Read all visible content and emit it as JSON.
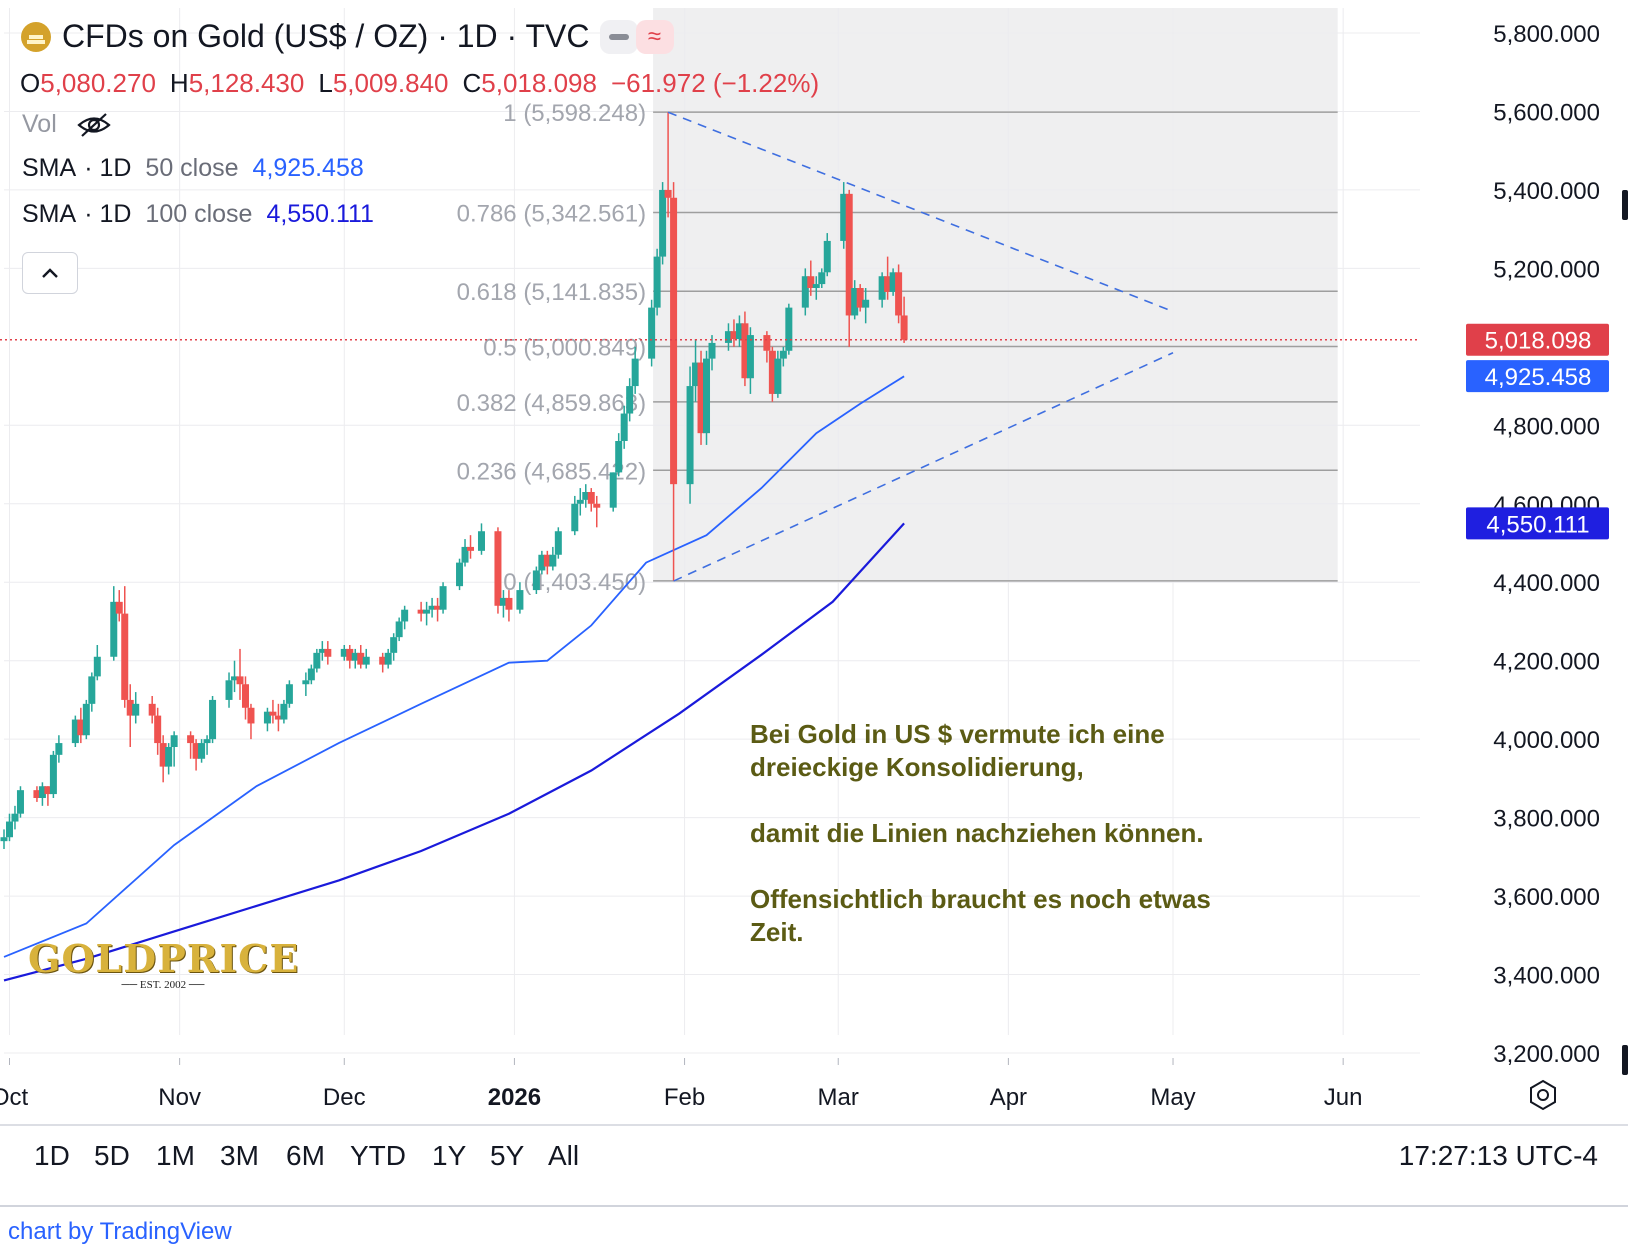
{
  "header": {
    "symbol_title": "CFDs on Gold (US$ / OZ) · 1D · TVC",
    "pill_minus_icon": "minus-icon",
    "pill_wave_icon": "approx-icon",
    "ohlc": {
      "o_label": "O",
      "o_value": "5,080.270",
      "h_label": "H",
      "h_value": "5,128.430",
      "l_label": "L",
      "l_value": "5,009.840",
      "c_label": "C",
      "c_value": "5,018.098",
      "change": "−61.972 (−1.22%)"
    },
    "vol_label": "Vol",
    "sma50": {
      "name": "SMA",
      "params": "· 1D",
      "period": "50 close",
      "value": "4,925.458"
    },
    "sma100": {
      "name": "SMA",
      "params": "· 1D",
      "period": "100 close",
      "value": "4,550.111"
    },
    "collapse_icon": "chevron-up-icon"
  },
  "range_buttons": [
    "1D",
    "5D",
    "1M",
    "3M",
    "6M",
    "YTD",
    "1Y",
    "5Y",
    "All"
  ],
  "clock": "17:27:13 UTC-4",
  "credit": "chart by TradingView",
  "annotation": [
    "Bei Gold in US $ vermute ich eine dreieckige Konsolidierung,",
    "damit die Linien nachziehen können.",
    "Offensichtlich braucht es noch etwas Zeit."
  ],
  "logo": {
    "text": "GOLDPRICE",
    "est": "EST. 2002"
  },
  "colors": {
    "up": "#26a69a",
    "down": "#ef5350",
    "sma50": "#2962ff",
    "sma100": "#1a1adb",
    "price_tag": "#e0404a",
    "sma50_tag": "#2962ff",
    "sma100_tag": "#1f1fe0",
    "fib_zone": "#efeff0",
    "annotation": "#5b5b14"
  },
  "chart_data": {
    "type": "candlestick",
    "title": "CFDs on Gold (US$ / OZ) · 1D · TVC",
    "y_axis_ticks": [
      "5,800.000",
      "5,600.000",
      "5,400.000",
      "5,200.000",
      "4,800.000",
      "4,600.000",
      "4,400.000",
      "4,200.000",
      "4,000.000",
      "3,800.000",
      "3,600.000",
      "3,400.000",
      "3,200.000"
    ],
    "ylim": [
      3150,
      5850
    ],
    "x_axis_ticks": [
      "Oct",
      "Nov",
      "Dec",
      "2026",
      "Feb",
      "Mar",
      "Apr",
      "May",
      "Jun"
    ],
    "x_range": [
      "2025-09-30",
      "2026-06-15"
    ],
    "last_price": 5018.098,
    "last_price_label": "5,018.098",
    "sma50_label": "4,925.458",
    "sma100_label": "4,550.111",
    "fibonacci": {
      "from_date": "2026-01-29",
      "to_date": "2026-05-31",
      "levels": [
        {
          "ratio": 1,
          "price": 5598.248,
          "label": "1 (5,598.248)"
        },
        {
          "ratio": 0.786,
          "price": 5342.561,
          "label": "0.786 (5,342.561)"
        },
        {
          "ratio": 0.618,
          "price": 5141.835,
          "label": "0.618 (5,141.835)"
        },
        {
          "ratio": 0.5,
          "price": 5000.849,
          "label": "0.5 (5,000.849)"
        },
        {
          "ratio": 0.382,
          "price": 4859.863,
          "label": "0.382 (4,859.863)"
        },
        {
          "ratio": 0.236,
          "price": 4685.422,
          "label": "0.236 (4,685.422)"
        },
        {
          "ratio": 0,
          "price": 4403.45,
          "label": "0 (4,403.450)"
        }
      ]
    },
    "trendlines": [
      {
        "from": [
          "2026-01-29",
          5598
        ],
        "to": [
          "2026-05-01",
          5090
        ],
        "style": "dashed"
      },
      {
        "from": [
          "2026-01-30",
          4403
        ],
        "to": [
          "2026-05-01",
          4985
        ],
        "style": "dashed"
      }
    ],
    "sma50": [
      [
        "2025-09-30",
        3445
      ],
      [
        "2025-10-15",
        3530
      ],
      [
        "2025-10-31",
        3730
      ],
      [
        "2025-11-15",
        3880
      ],
      [
        "2025-11-30",
        3990
      ],
      [
        "2025-12-15",
        4090
      ],
      [
        "2025-12-31",
        4195
      ],
      [
        "2026-01-07",
        4200
      ],
      [
        "2026-01-15",
        4290
      ],
      [
        "2026-01-25",
        4450
      ],
      [
        "2026-02-05",
        4520
      ],
      [
        "2026-02-15",
        4640
      ],
      [
        "2026-02-25",
        4780
      ],
      [
        "2026-03-05",
        4855
      ],
      [
        "2026-03-13",
        4925
      ]
    ],
    "sma100": [
      [
        "2025-09-30",
        3385
      ],
      [
        "2025-10-15",
        3440
      ],
      [
        "2025-10-31",
        3510
      ],
      [
        "2025-11-15",
        3575
      ],
      [
        "2025-11-30",
        3640
      ],
      [
        "2025-12-15",
        3715
      ],
      [
        "2025-12-31",
        3810
      ],
      [
        "2026-01-15",
        3920
      ],
      [
        "2026-01-31",
        4065
      ],
      [
        "2026-02-15",
        4215
      ],
      [
        "2026-02-28",
        4350
      ],
      [
        "2026-03-13",
        4550
      ]
    ],
    "ohlc": [
      [
        "2025-09-30",
        3740,
        3770,
        3720,
        3750
      ],
      [
        "2025-10-01",
        3750,
        3810,
        3740,
        3790
      ],
      [
        "2025-10-02",
        3790,
        3830,
        3770,
        3810
      ],
      [
        "2025-10-03",
        3810,
        3880,
        3800,
        3870
      ],
      [
        "2025-10-06",
        3870,
        3880,
        3840,
        3850
      ],
      [
        "2025-10-07",
        3850,
        3890,
        3830,
        3880
      ],
      [
        "2025-10-08",
        3880,
        3880,
        3830,
        3860
      ],
      [
        "2025-10-09",
        3860,
        3970,
        3850,
        3960
      ],
      [
        "2025-10-10",
        3960,
        4010,
        3940,
        3990
      ],
      [
        "2025-10-13",
        3990,
        4060,
        3980,
        4050
      ],
      [
        "2025-10-14",
        4050,
        4080,
        3990,
        4010
      ],
      [
        "2025-10-15",
        4010,
        4100,
        4000,
        4090
      ],
      [
        "2025-10-16",
        4090,
        4170,
        4070,
        4160
      ],
      [
        "2025-10-17",
        4160,
        4240,
        4150,
        4210
      ],
      [
        "2025-10-20",
        4210,
        4390,
        4200,
        4350
      ],
      [
        "2025-10-21",
        4350,
        4380,
        4300,
        4320
      ],
      [
        "2025-10-22",
        4320,
        4390,
        4080,
        4100
      ],
      [
        "2025-10-23",
        4100,
        4140,
        3980,
        4060
      ],
      [
        "2025-10-24",
        4060,
        4120,
        4040,
        4090
      ],
      [
        "2025-10-27",
        4090,
        4110,
        4040,
        4060
      ],
      [
        "2025-10-28",
        4060,
        4080,
        3960,
        3990
      ],
      [
        "2025-10-29",
        3990,
        4010,
        3890,
        3930
      ],
      [
        "2025-10-30",
        3930,
        3990,
        3910,
        3980
      ],
      [
        "2025-10-31",
        3980,
        4020,
        3930,
        4010
      ],
      [
        "2025-11-03",
        4010,
        4020,
        3950,
        3990
      ],
      [
        "2025-11-04",
        3990,
        4000,
        3920,
        3950
      ],
      [
        "2025-11-05",
        3950,
        4000,
        3940,
        3990
      ],
      [
        "2025-11-06",
        3990,
        4010,
        3960,
        4000
      ],
      [
        "2025-11-07",
        4000,
        4110,
        3990,
        4100
      ],
      [
        "2025-11-10",
        4100,
        4170,
        4080,
        4150
      ],
      [
        "2025-11-11",
        4150,
        4200,
        4120,
        4160
      ],
      [
        "2025-11-12",
        4160,
        4230,
        4100,
        4140
      ],
      [
        "2025-11-13",
        4140,
        4160,
        4050,
        4080
      ],
      [
        "2025-11-14",
        4080,
        4090,
        4000,
        4040
      ],
      [
        "2025-11-17",
        4040,
        4080,
        4020,
        4070
      ],
      [
        "2025-11-18",
        4070,
        4100,
        4040,
        4060
      ],
      [
        "2025-11-19",
        4060,
        4090,
        4020,
        4050
      ],
      [
        "2025-11-20",
        4050,
        4100,
        4040,
        4090
      ],
      [
        "2025-11-21",
        4090,
        4150,
        4080,
        4140
      ],
      [
        "2025-11-24",
        4140,
        4170,
        4110,
        4150
      ],
      [
        "2025-11-25",
        4150,
        4190,
        4140,
        4180
      ],
      [
        "2025-11-26",
        4180,
        4230,
        4170,
        4220
      ],
      [
        "2025-11-27",
        4220,
        4250,
        4200,
        4230
      ],
      [
        "2025-11-28",
        4230,
        4250,
        4190,
        4210
      ],
      [
        "2025-12-01",
        4210,
        4240,
        4200,
        4230
      ],
      [
        "2025-12-02",
        4230,
        4240,
        4180,
        4200
      ],
      [
        "2025-12-03",
        4200,
        4230,
        4180,
        4220
      ],
      [
        "2025-12-04",
        4220,
        4240,
        4180,
        4190
      ],
      [
        "2025-12-05",
        4190,
        4230,
        4180,
        4210
      ],
      [
        "2025-12-08",
        4210,
        4220,
        4170,
        4190
      ],
      [
        "2025-12-09",
        4190,
        4230,
        4180,
        4220
      ],
      [
        "2025-12-10",
        4220,
        4270,
        4200,
        4260
      ],
      [
        "2025-12-11",
        4260,
        4310,
        4250,
        4300
      ],
      [
        "2025-12-12",
        4300,
        4340,
        4280,
        4330
      ],
      [
        "2025-12-15",
        4330,
        4350,
        4300,
        4320
      ],
      [
        "2025-12-16",
        4320,
        4350,
        4290,
        4330
      ],
      [
        "2025-12-17",
        4330,
        4360,
        4310,
        4340
      ],
      [
        "2025-12-18",
        4340,
        4360,
        4300,
        4330
      ],
      [
        "2025-12-19",
        4330,
        4400,
        4320,
        4390
      ],
      [
        "2025-12-22",
        4390,
        4460,
        4380,
        4450
      ],
      [
        "2025-12-23",
        4450,
        4510,
        4440,
        4490
      ],
      [
        "2025-12-24",
        4490,
        4520,
        4460,
        4480
      ],
      [
        "2025-12-26",
        4480,
        4550,
        4470,
        4530
      ],
      [
        "2025-12-29",
        4530,
        4540,
        4320,
        4340
      ],
      [
        "2025-12-30",
        4340,
        4380,
        4310,
        4360
      ],
      [
        "2025-12-31",
        4360,
        4380,
        4300,
        4330
      ],
      [
        "2026-01-02",
        4330,
        4400,
        4320,
        4380
      ],
      [
        "2026-01-05",
        4380,
        4440,
        4370,
        4430
      ],
      [
        "2026-01-06",
        4430,
        4480,
        4420,
        4470
      ],
      [
        "2026-01-07",
        4470,
        4480,
        4420,
        4440
      ],
      [
        "2026-01-08",
        4440,
        4490,
        4430,
        4470
      ],
      [
        "2026-01-09",
        4470,
        4540,
        4460,
        4530
      ],
      [
        "2026-01-12",
        4530,
        4620,
        4520,
        4600
      ],
      [
        "2026-01-13",
        4600,
        4640,
        4570,
        4610
      ],
      [
        "2026-01-14",
        4610,
        4650,
        4590,
        4630
      ],
      [
        "2026-01-15",
        4630,
        4640,
        4580,
        4600
      ],
      [
        "2026-01-16",
        4600,
        4620,
        4540,
        4590
      ],
      [
        "2026-01-19",
        4590,
        4680,
        4580,
        4680
      ],
      [
        "2026-01-20",
        4680,
        4780,
        4670,
        4760
      ],
      [
        "2026-01-21",
        4760,
        4850,
        4740,
        4830
      ],
      [
        "2026-01-22",
        4830,
        4920,
        4810,
        4900
      ],
      [
        "2026-01-23",
        4900,
        5000,
        4880,
        4970
      ],
      [
        "2026-01-26",
        4970,
        5120,
        4950,
        5100
      ],
      [
        "2026-01-27",
        5100,
        5250,
        5080,
        5230
      ],
      [
        "2026-01-28",
        5230,
        5420,
        5210,
        5400
      ],
      [
        "2026-01-29",
        5400,
        5598,
        5330,
        5380
      ],
      [
        "2026-01-30",
        5380,
        5420,
        4403,
        4650
      ],
      [
        "2026-02-02",
        4650,
        4950,
        4600,
        4900
      ],
      [
        "2026-02-03",
        4900,
        5020,
        4860,
        4960
      ],
      [
        "2026-02-04",
        4960,
        4990,
        4750,
        4780
      ],
      [
        "2026-02-05",
        4780,
        4990,
        4750,
        4970
      ],
      [
        "2026-02-06",
        4970,
        5030,
        4940,
        5010
      ],
      [
        "2026-02-09",
        5010,
        5060,
        4990,
        5040
      ],
      [
        "2026-02-10",
        5040,
        5070,
        5000,
        5020
      ],
      [
        "2026-02-11",
        5020,
        5080,
        5000,
        5060
      ],
      [
        "2026-02-12",
        5060,
        5090,
        4900,
        4920
      ],
      [
        "2026-02-13",
        4920,
        5050,
        4880,
        5030
      ],
      [
        "2026-02-16",
        5030,
        5040,
        4960,
        4990
      ],
      [
        "2026-02-17",
        4990,
        5000,
        4860,
        4880
      ],
      [
        "2026-02-18",
        4880,
        4990,
        4870,
        4970
      ],
      [
        "2026-02-19",
        4970,
        5000,
        4950,
        4990
      ],
      [
        "2026-02-20",
        4990,
        5110,
        4980,
        5100
      ],
      [
        "2026-02-23",
        5100,
        5200,
        5080,
        5180
      ],
      [
        "2026-02-24",
        5180,
        5220,
        5130,
        5150
      ],
      [
        "2026-02-25",
        5150,
        5180,
        5120,
        5160
      ],
      [
        "2026-02-26",
        5160,
        5200,
        5150,
        5190
      ],
      [
        "2026-02-27",
        5190,
        5290,
        5180,
        5270
      ],
      [
        "2026-03-02",
        5270,
        5420,
        5250,
        5390
      ],
      [
        "2026-03-03",
        5390,
        5400,
        5000,
        5080
      ],
      [
        "2026-03-04",
        5080,
        5170,
        5070,
        5150
      ],
      [
        "2026-03-05",
        5150,
        5160,
        5090,
        5100
      ],
      [
        "2026-03-06",
        5100,
        5150,
        5060,
        5120
      ],
      [
        "2026-03-09",
        5120,
        5190,
        5100,
        5180
      ],
      [
        "2026-03-10",
        5180,
        5230,
        5120,
        5140
      ],
      [
        "2026-03-11",
        5140,
        5200,
        5130,
        5190
      ],
      [
        "2026-03-12",
        5190,
        5210,
        5060,
        5080
      ],
      [
        "2026-03-13",
        5080,
        5128,
        5010,
        5018
      ]
    ]
  }
}
